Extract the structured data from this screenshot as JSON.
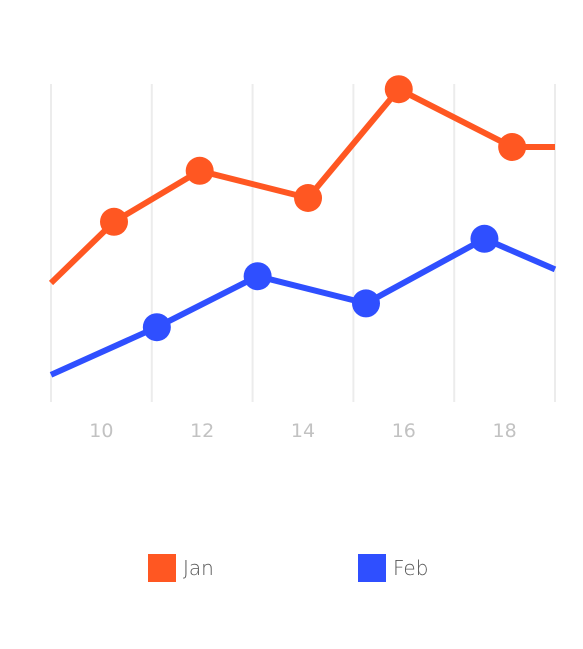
{
  "chart_data": {
    "type": "line",
    "x_ticks": [
      "10",
      "12",
      "14",
      "16",
      "18"
    ],
    "xlim": [
      9,
      19
    ],
    "ylim": [
      0,
      100
    ],
    "grid": true,
    "legend_placement": "bottom",
    "series": [
      {
        "name": "Jan",
        "color": "#ff5722",
        "points": [
          [
            9,
            35
          ],
          [
            10.25,
            53
          ],
          [
            11.95,
            68
          ],
          [
            14.1,
            60
          ],
          [
            15.9,
            92
          ],
          [
            18.15,
            75
          ],
          [
            19,
            75
          ]
        ],
        "markers": [
          false,
          true,
          true,
          true,
          true,
          true,
          false
        ]
      },
      {
        "name": "Feb",
        "color": "#2f4fff",
        "points": [
          [
            9,
            8
          ],
          [
            11.1,
            22
          ],
          [
            13.1,
            37
          ],
          [
            15.25,
            29
          ],
          [
            17.6,
            48
          ],
          [
            19,
            39
          ]
        ],
        "markers": [
          false,
          true,
          true,
          true,
          true,
          false
        ]
      }
    ]
  }
}
